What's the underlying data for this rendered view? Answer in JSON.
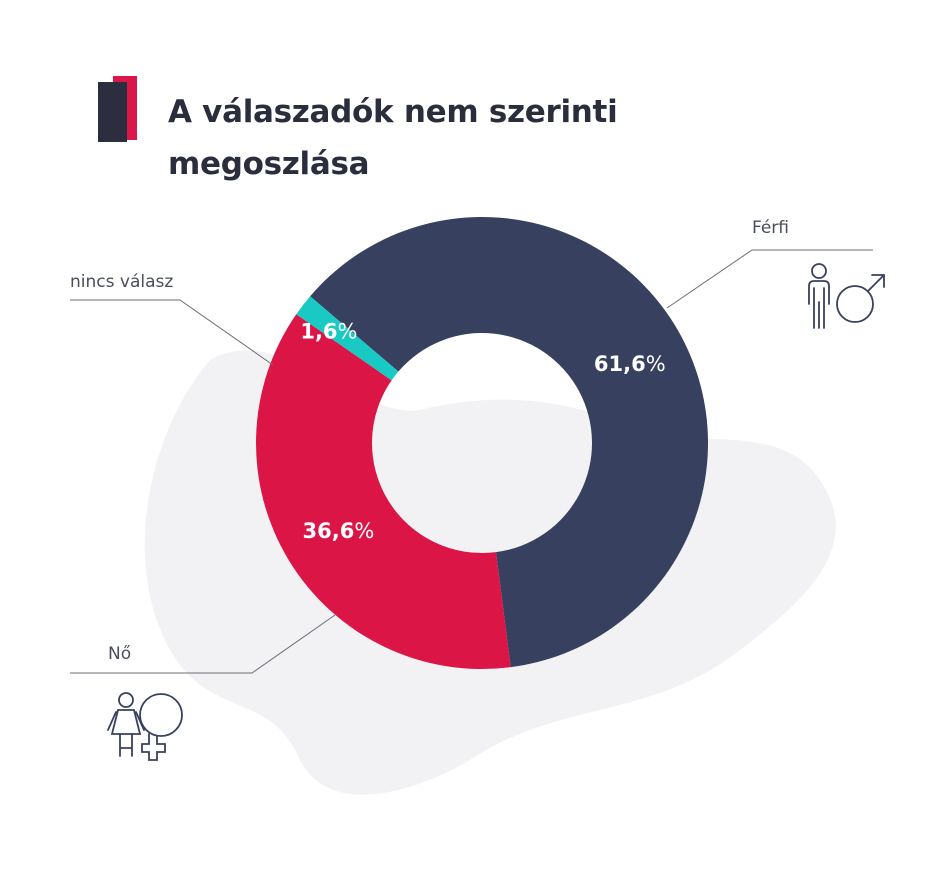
{
  "title_lines": [
    "A válaszadók nem szerinti",
    "megoszlása"
  ],
  "chart_data": {
    "type": "pie",
    "title": "A válaszadók nem szerinti megoszlása",
    "variant": "donut",
    "slices": [
      {
        "label": "Férfi",
        "value": 61.6,
        "display": "61,6",
        "color": "#384060"
      },
      {
        "label": "Nő",
        "value": 36.6,
        "display": "36,6",
        "color": "#dc1547"
      },
      {
        "label": "nincs válasz",
        "value": 1.6,
        "display": "1,6",
        "color": "#19c9c4"
      }
    ],
    "unit": "%",
    "legend": "callout labels with leader lines"
  },
  "colors": {
    "background_blob": "#f2f2f4",
    "title": "#2a2d3c",
    "accent_red": "#d9174a",
    "accent_dark": "#2c2e3f"
  },
  "icons": {
    "male": "male-person-icon",
    "female": "female-person-icon"
  }
}
